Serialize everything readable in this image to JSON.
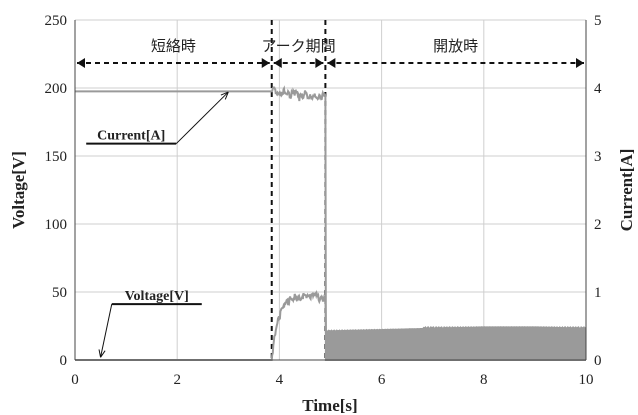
{
  "chart_data": {
    "type": "line",
    "title": "",
    "xlabel": "Time[s]",
    "ylabel": "Voltage[V]",
    "y2label": "Current[A]",
    "xlim": [
      0,
      10
    ],
    "ylim": [
      0,
      250
    ],
    "y2lim": [
      0,
      5
    ],
    "xticks": [
      "0",
      "2",
      "4",
      "6",
      "8",
      "10"
    ],
    "yticks": [
      "0",
      "50",
      "100",
      "150",
      "200",
      "250"
    ],
    "y2ticks": [
      "0",
      "1",
      "2",
      "3",
      "4",
      "5"
    ],
    "grid": true,
    "regions": [
      {
        "label": "短絡時",
        "start": 0,
        "end": 3.85
      },
      {
        "label": "アーク期間",
        "start": 3.85,
        "end": 4.9
      },
      {
        "label": "開放時",
        "start": 4.9,
        "end": 10
      }
    ],
    "boundaries": [
      3.85,
      4.9
    ],
    "series": [
      {
        "name": "Current[A]",
        "axis": "right",
        "color": "#9a9a9a",
        "x": [
          0,
          3.85,
          3.9,
          4.0,
          4.1,
          4.2,
          4.3,
          4.4,
          4.5,
          4.6,
          4.7,
          4.8,
          4.9,
          4.91,
          10
        ],
        "y": [
          3.95,
          3.95,
          3.98,
          3.92,
          3.96,
          3.88,
          3.93,
          3.85,
          3.92,
          3.87,
          3.9,
          3.86,
          3.9,
          0,
          0
        ]
      },
      {
        "name": "Voltage[V]",
        "axis": "left",
        "color": "#9a9a9a",
        "x": [
          0,
          3.85,
          3.9,
          4.0,
          4.1,
          4.2,
          4.3,
          4.4,
          4.5,
          4.6,
          4.7,
          4.8,
          4.9,
          4.91,
          6,
          7,
          8,
          9,
          10
        ],
        "y": [
          0,
          0,
          18,
          32,
          40,
          44,
          47,
          46,
          48,
          46,
          47,
          45,
          46,
          21,
          22,
          23,
          24,
          24,
          23
        ]
      }
    ],
    "annotations": [
      {
        "text": "Current[A]",
        "x": 1.1,
        "y": 162,
        "arrow_to_x": 3.0,
        "arrow_to_y": 197
      },
      {
        "text": "Voltage[V]",
        "x": 1.6,
        "y": 44,
        "arrow_to_x": 0.5,
        "arrow_to_y": 2
      }
    ]
  }
}
